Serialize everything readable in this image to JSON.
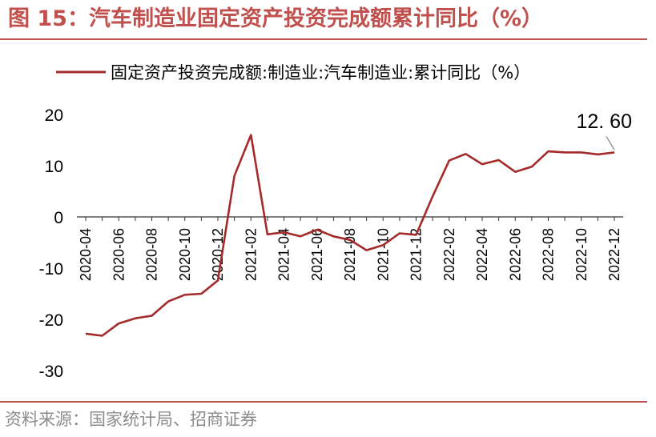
{
  "figure": {
    "title": "图 15：汽车制造业固定资产投资完成额累计同比（%）",
    "source": "资料来源：国家统计局、招商证券"
  },
  "colors": {
    "accent": "#c0504d",
    "series": "#a52a2a",
    "text": "#000000",
    "source": "#8c8c8c",
    "axis": "#333333",
    "callout_line": "#999999"
  },
  "chart_data": {
    "type": "line",
    "title": "",
    "xlabel": "",
    "ylabel": "",
    "ylim": [
      -30,
      20
    ],
    "yticks": [
      20,
      10,
      0,
      -10,
      -20,
      -30
    ],
    "grid": false,
    "legend_position": "top",
    "x": [
      "2020-04",
      "2020-05",
      "2020-06",
      "2020-07",
      "2020-08",
      "2020-09",
      "2020-10",
      "2020-11",
      "2020-12",
      "2021-01",
      "2021-02",
      "2021-03",
      "2021-04",
      "2021-05",
      "2021-06",
      "2021-07",
      "2021-08",
      "2021-09",
      "2021-10",
      "2021-11",
      "2021-12",
      "2022-01",
      "2022-02",
      "2022-03",
      "2022-04",
      "2022-05",
      "2022-06",
      "2022-07",
      "2022-08",
      "2022-09",
      "2022-10",
      "2022-11",
      "2022-12"
    ],
    "xtick_labels": [
      "2020-04",
      "2020-06",
      "2020-08",
      "2020-10",
      "2020-12",
      "2021-02",
      "2021-04",
      "2021-06",
      "2021-08",
      "2021-10",
      "2021-12",
      "2022-02",
      "2022-04",
      "2022-06",
      "2022-08",
      "2022-10",
      "2022-12"
    ],
    "series": [
      {
        "name": "固定资产投资完成额:制造业:汽车制造业:累计同比（%）",
        "values": [
          -22.8,
          -23.2,
          -20.8,
          -19.8,
          -19.3,
          -16.5,
          -15.2,
          -15.0,
          -12.4,
          8.0,
          16.0,
          -3.4,
          -3.0,
          -3.8,
          -2.5,
          -3.8,
          -4.5,
          -6.5,
          -5.5,
          -3.2,
          -3.5,
          4.0,
          11.0,
          12.3,
          10.3,
          11.1,
          8.8,
          9.8,
          12.8,
          12.6,
          12.6,
          12.2,
          12.6
        ]
      }
    ],
    "annotations": [
      {
        "text": "12. 60",
        "x": "2022-12",
        "y": 12.6
      }
    ]
  }
}
